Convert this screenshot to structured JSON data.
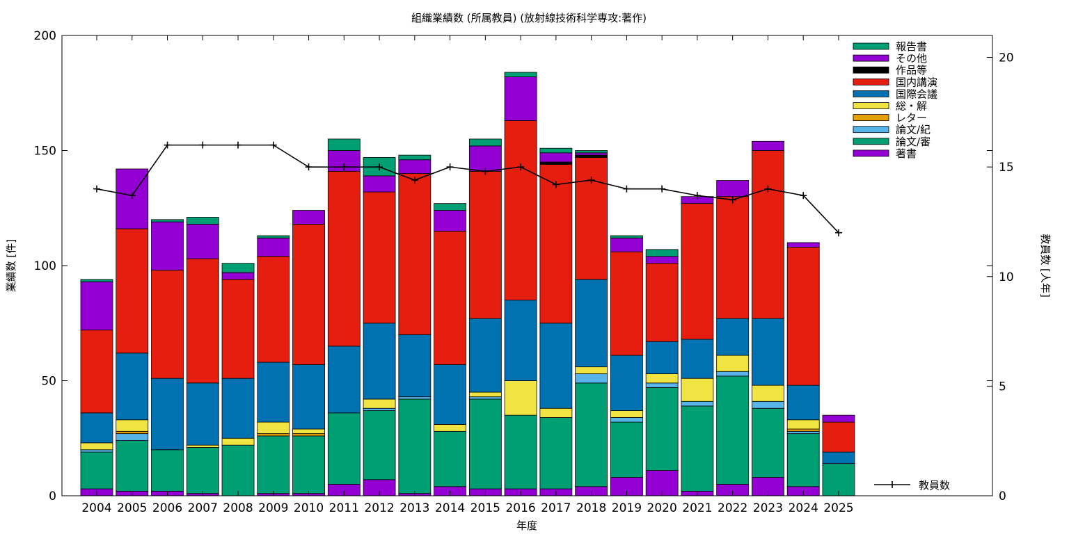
{
  "chart_data": {
    "type": "bar",
    "stacked": true,
    "title": "組織業績数 (所属教員) (放射線技術科学専攻:著作)",
    "xlabel": "年度",
    "ylabel": "業績数 [件]",
    "y2label": "教員数 [人年]",
    "ylim": [
      0,
      200
    ],
    "y2lim": [
      0,
      21
    ],
    "yticks": [
      "0",
      "50",
      "100",
      "150",
      "200"
    ],
    "y2ticks": [
      "0",
      "5",
      "10",
      "15",
      "20"
    ],
    "categories": [
      "2004",
      "2005",
      "2006",
      "2007",
      "2008",
      "2009",
      "2010",
      "2011",
      "2012",
      "2013",
      "2014",
      "2015",
      "2016",
      "2017",
      "2018",
      "2019",
      "2020",
      "2021",
      "2022",
      "2023",
      "2024",
      "2025"
    ],
    "series": [
      {
        "name": "著書",
        "color": "#9400d3",
        "values": [
          3,
          2,
          2,
          1,
          0,
          1,
          1,
          5,
          7,
          1,
          4,
          3,
          3,
          3,
          4,
          8,
          11,
          2,
          5,
          8,
          4,
          0
        ]
      },
      {
        "name": "論文/審",
        "color": "#009e73",
        "values": [
          16,
          22,
          18,
          20,
          22,
          25,
          25,
          31,
          30,
          41,
          24,
          39,
          32,
          31,
          45,
          24,
          36,
          37,
          47,
          30,
          23,
          14
        ]
      },
      {
        "name": "論文/紀",
        "color": "#56b4e9",
        "values": [
          1,
          3,
          0,
          0,
          0,
          0,
          0,
          0,
          1,
          1,
          0,
          1,
          0,
          0,
          4,
          2,
          2,
          2,
          2,
          3,
          1,
          0
        ]
      },
      {
        "name": "レター",
        "color": "#e69f00",
        "values": [
          0,
          1,
          0,
          0,
          0,
          1,
          1,
          0,
          0,
          0,
          0,
          0,
          0,
          0,
          0,
          0,
          0,
          0,
          0,
          0,
          1,
          0
        ]
      },
      {
        "name": "総・解",
        "color": "#f0e442",
        "values": [
          3,
          5,
          0,
          1,
          3,
          5,
          2,
          0,
          4,
          0,
          3,
          2,
          15,
          4,
          3,
          3,
          4,
          10,
          7,
          7,
          4,
          0
        ]
      },
      {
        "name": "国際会議",
        "color": "#0072b2",
        "values": [
          13,
          29,
          31,
          27,
          26,
          26,
          28,
          29,
          33,
          27,
          26,
          32,
          35,
          37,
          38,
          24,
          14,
          17,
          16,
          29,
          15,
          5
        ]
      },
      {
        "name": "国内講演",
        "color": "#e51e10",
        "values": [
          36,
          54,
          47,
          54,
          43,
          46,
          61,
          76,
          57,
          70,
          58,
          64,
          78,
          69,
          53,
          45,
          34,
          59,
          53,
          73,
          60,
          13
        ]
      },
      {
        "name": "作品等",
        "color": "#000000",
        "values": [
          0,
          0,
          0,
          0,
          0,
          0,
          0,
          0,
          0,
          0,
          0,
          0,
          0,
          1,
          1,
          0,
          0,
          0,
          0,
          0,
          0,
          0
        ]
      },
      {
        "name": "その他",
        "color": "#9400d3",
        "values": [
          21,
          26,
          21,
          15,
          3,
          8,
          6,
          9,
          7,
          6,
          9,
          11,
          19,
          4,
          1,
          6,
          3,
          3,
          7,
          4,
          2,
          3
        ]
      },
      {
        "name": "報告書",
        "color": "#009e73",
        "values": [
          1,
          0,
          1,
          3,
          4,
          1,
          0,
          5,
          8,
          2,
          3,
          3,
          2,
          2,
          1,
          1,
          3,
          0,
          0,
          0,
          0,
          0
        ]
      }
    ],
    "legend_order": [
      "報告書",
      "その他",
      "作品等",
      "国内講演",
      "国際会議",
      "総・解",
      "レター",
      "論文/紀",
      "論文/審",
      "著書"
    ],
    "legend_placement": "top-right",
    "line_series": {
      "name": "教員数",
      "axis": "right",
      "color": "#000000",
      "values": [
        14,
        13.7,
        16,
        16,
        16,
        16,
        15,
        15,
        15,
        14.4,
        15,
        14.8,
        15,
        14.2,
        14.4,
        14,
        14,
        13.7,
        13.5,
        14,
        13.7,
        12
      ]
    },
    "grid": false
  }
}
